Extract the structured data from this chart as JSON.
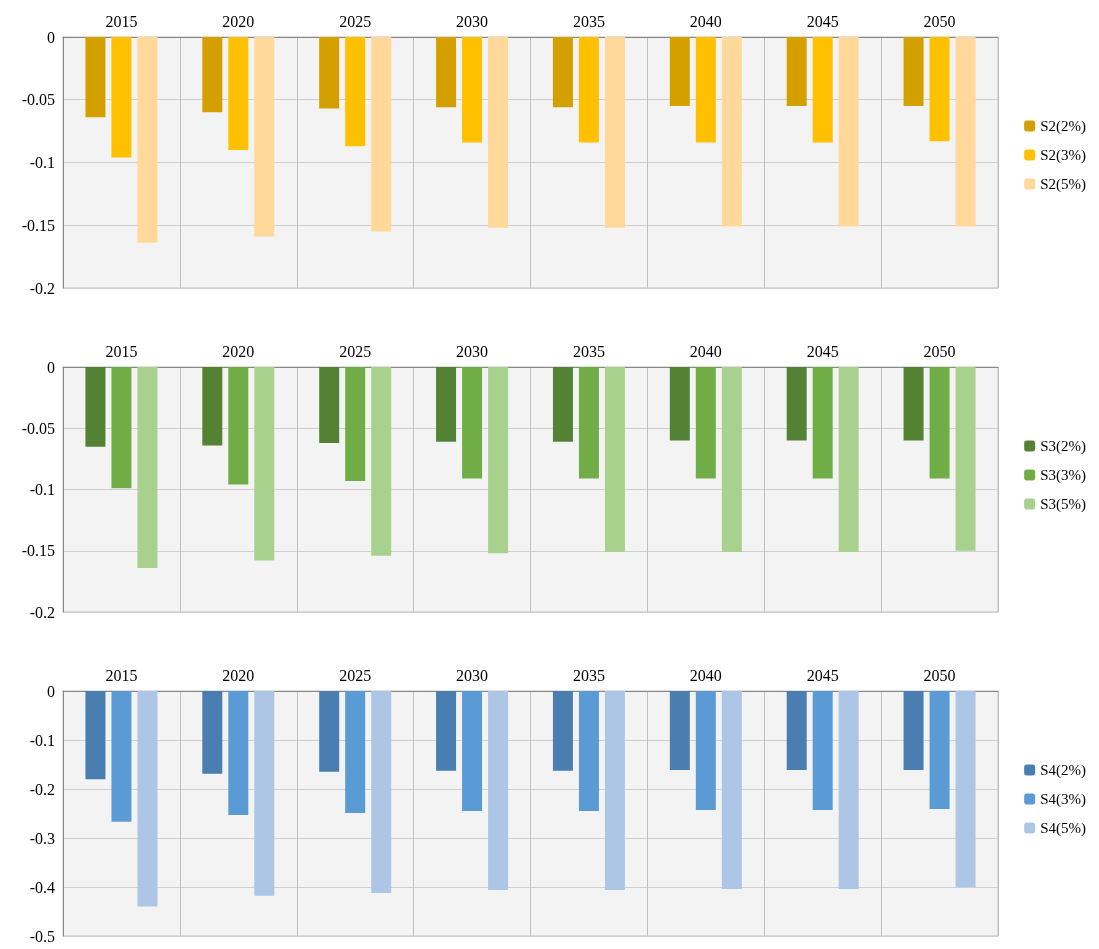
{
  "chart_data": [
    {
      "type": "bar",
      "categories": [
        "2015",
        "2020",
        "2025",
        "2030",
        "2035",
        "2040",
        "2045",
        "2050"
      ],
      "ylim": [
        -0.2,
        0
      ],
      "yticks": [
        0,
        -0.05,
        -0.1,
        -0.15,
        -0.2
      ],
      "grid": true,
      "legend": "right",
      "series": [
        {
          "name": "S2(2%)",
          "color": "#d4a000",
          "values": [
            -0.064,
            -0.06,
            -0.057,
            -0.056,
            -0.056,
            -0.055,
            -0.055,
            -0.055
          ]
        },
        {
          "name": "S2(3%)",
          "color": "#ffc000",
          "values": [
            -0.096,
            -0.09,
            -0.087,
            -0.084,
            -0.084,
            -0.084,
            -0.084,
            -0.083
          ]
        },
        {
          "name": "S2(5%)",
          "color": "#ffd89a",
          "values": [
            -0.164,
            -0.159,
            -0.155,
            -0.152,
            -0.152,
            -0.151,
            -0.151,
            -0.151
          ]
        }
      ]
    },
    {
      "type": "bar",
      "categories": [
        "2015",
        "2020",
        "2025",
        "2030",
        "2035",
        "2040",
        "2045",
        "2050"
      ],
      "ylim": [
        -0.2,
        0
      ],
      "yticks": [
        0,
        -0.05,
        -0.1,
        -0.15,
        -0.2
      ],
      "grid": true,
      "legend": "right",
      "series": [
        {
          "name": "S3(2%)",
          "color": "#548235",
          "values": [
            -0.065,
            -0.064,
            -0.062,
            -0.061,
            -0.061,
            -0.06,
            -0.06,
            -0.06
          ]
        },
        {
          "name": "S3(3%)",
          "color": "#70ad47",
          "values": [
            -0.099,
            -0.096,
            -0.093,
            -0.091,
            -0.091,
            -0.091,
            -0.091,
            -0.091
          ]
        },
        {
          "name": "S3(5%)",
          "color": "#a9d18e",
          "values": [
            -0.164,
            -0.158,
            -0.154,
            -0.152,
            -0.151,
            -0.151,
            -0.151,
            -0.15
          ]
        }
      ]
    },
    {
      "type": "bar",
      "categories": [
        "2015",
        "2020",
        "2025",
        "2030",
        "2035",
        "2040",
        "2045",
        "2050"
      ],
      "ylim": [
        -0.5,
        0
      ],
      "yticks": [
        0,
        -0.1,
        -0.2,
        -0.3,
        -0.4,
        -0.5
      ],
      "grid": true,
      "legend": "right",
      "series": [
        {
          "name": "S4(2%)",
          "color": "#4a7eb0",
          "values": [
            -0.18,
            -0.169,
            -0.165,
            -0.163,
            -0.163,
            -0.161,
            -0.161,
            -0.161
          ]
        },
        {
          "name": "S4(3%)",
          "color": "#5b9bd5",
          "values": [
            -0.267,
            -0.253,
            -0.249,
            -0.245,
            -0.245,
            -0.243,
            -0.243,
            -0.241
          ]
        },
        {
          "name": "S4(5%)",
          "color": "#adc6e6",
          "values": [
            -0.44,
            -0.418,
            -0.412,
            -0.406,
            -0.406,
            -0.404,
            -0.404,
            -0.4
          ]
        }
      ]
    }
  ]
}
